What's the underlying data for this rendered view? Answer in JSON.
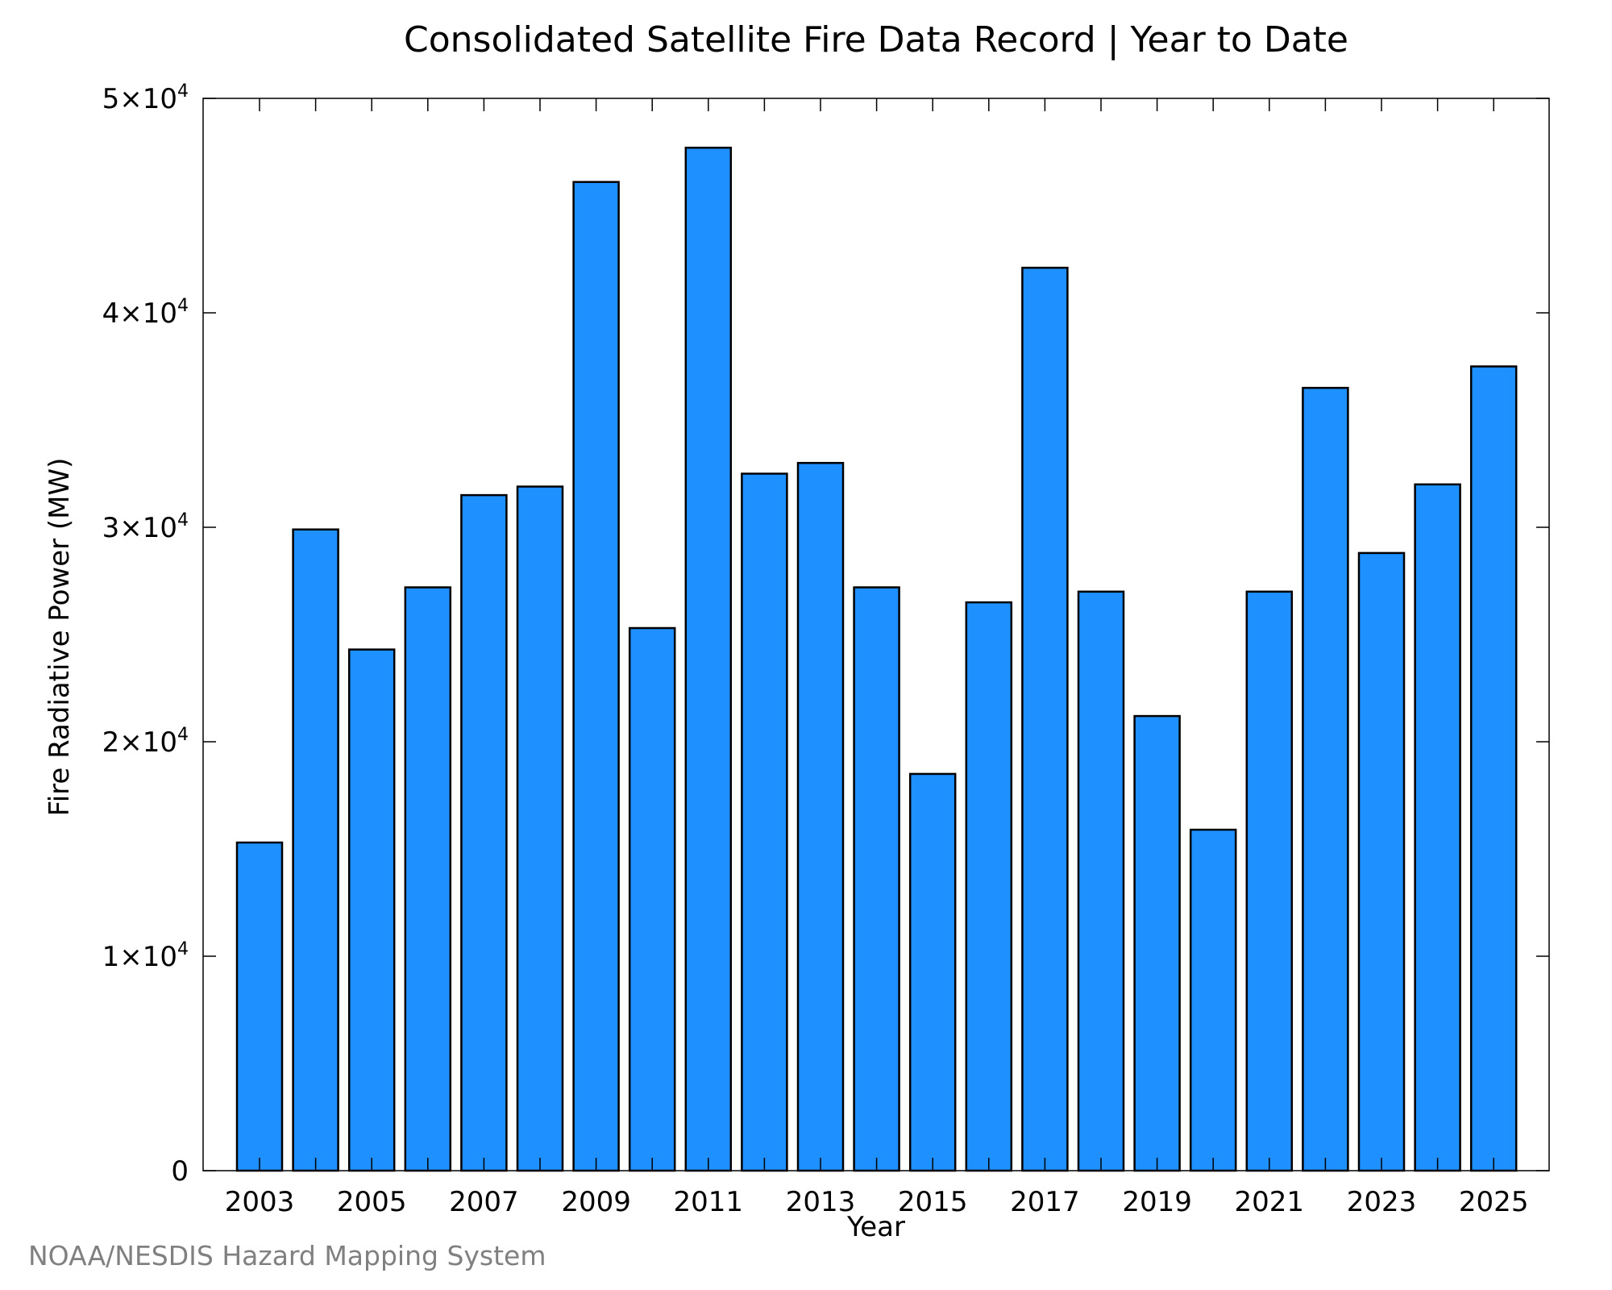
{
  "credit": "NOAA/NESDIS Hazard Mapping System",
  "chart_data": {
    "type": "bar",
    "title": "Consolidated Satellite Fire Data Record | Year to Date",
    "xlabel": "Year",
    "ylabel": "Fire Radiative Power (MW)",
    "categories": [
      "2003",
      "2004",
      "2005",
      "2006",
      "2007",
      "2008",
      "2009",
      "2010",
      "2011",
      "2012",
      "2013",
      "2014",
      "2015",
      "2016",
      "2017",
      "2018",
      "2019",
      "2020",
      "2021",
      "2022",
      "2023",
      "2024",
      "2025"
    ],
    "values": [
      15300,
      29900,
      24300,
      27200,
      31500,
      31900,
      46100,
      25300,
      47700,
      32500,
      33000,
      27200,
      18500,
      26500,
      42100,
      27000,
      21200,
      15900,
      27000,
      36500,
      28800,
      32000,
      37500
    ],
    "x_tick_labels": [
      "2003",
      "2005",
      "2007",
      "2009",
      "2011",
      "2013",
      "2015",
      "2017",
      "2019",
      "2021",
      "2023",
      "2025"
    ],
    "y_ticks": [
      {
        "value": 0,
        "mantissa": "0",
        "exp": ""
      },
      {
        "value": 10000,
        "mantissa": "1×10",
        "exp": "4"
      },
      {
        "value": 20000,
        "mantissa": "2×10",
        "exp": "4"
      },
      {
        "value": 30000,
        "mantissa": "3×10",
        "exp": "4"
      },
      {
        "value": 40000,
        "mantissa": "4×10",
        "exp": "4"
      },
      {
        "value": 50000,
        "mantissa": "5×10",
        "exp": "4"
      }
    ],
    "ylim": [
      0,
      50000
    ],
    "grid": false,
    "bar_color": "#1e90ff",
    "bar_edge_color": "#000000"
  }
}
